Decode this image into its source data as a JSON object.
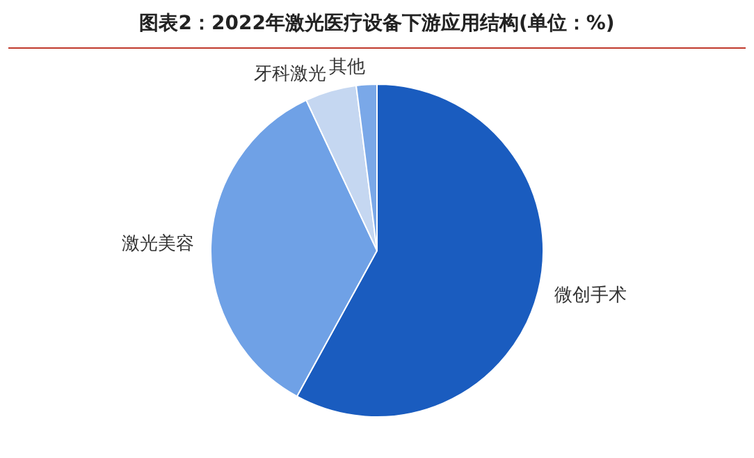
{
  "chart_data": {
    "type": "pie",
    "title": "图表2：2022年激光医疗设备下游应用结构(单位：%)",
    "categories": [
      "微创手术",
      "激光美容",
      "牙科激光",
      "其他"
    ],
    "values": [
      58,
      35,
      5,
      2
    ],
    "colors": [
      "#1a5cbf",
      "#6fa1e6",
      "#c5d7f1",
      "#7aa8e8"
    ],
    "legend": false
  }
}
